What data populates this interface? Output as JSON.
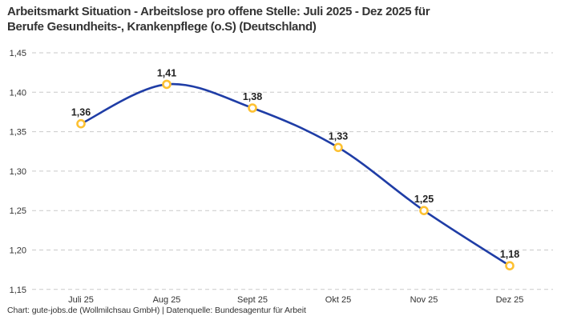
{
  "header": {
    "title_line1": "Arbeitsmarkt Situation - Arbeitslose pro offene Stelle: Juli 2025 - Dez 2025 für",
    "title_line2": "Berufe Gesundheits-, Krankenpflege (o.S) (Deutschland)"
  },
  "footer": {
    "credit": "Chart: gute-jobs.de (Wollmilchsau GmbH) | Datenquelle: Bundesagentur für Arbeit"
  },
  "chart_data": {
    "type": "line",
    "title": "Arbeitsmarkt Situation - Arbeitslose pro offene Stelle: Juli 2025 - Dez 2025 für Berufe Gesundheits-, Krankenpflege (o.S) (Deutschland)",
    "categories": [
      "Juli 25",
      "Aug 25",
      "Sept 25",
      "Okt 25",
      "Nov 25",
      "Dez 25"
    ],
    "values": [
      1.36,
      1.41,
      1.38,
      1.33,
      1.25,
      1.18
    ],
    "point_labels": [
      "1,36",
      "1,41",
      "1,38",
      "1,33",
      "1,25",
      "1,18"
    ],
    "ylim": [
      1.15,
      1.45
    ],
    "ytick_step": 0.05,
    "ytick_labels": [
      "1,45",
      "1,40",
      "1,35",
      "1,30",
      "1,25",
      "1,20",
      "1,15"
    ],
    "xlabel": "",
    "ylabel": "",
    "grid": "horizontal-dashed",
    "legend": "none",
    "colors": {
      "line": "#1f3da6",
      "marker_stroke": "#fdc132",
      "marker_fill": "#ffffff",
      "grid": "#c9c9c9",
      "point_label": "#222222",
      "axis_text": "#333333",
      "title_text": "#333333"
    }
  }
}
